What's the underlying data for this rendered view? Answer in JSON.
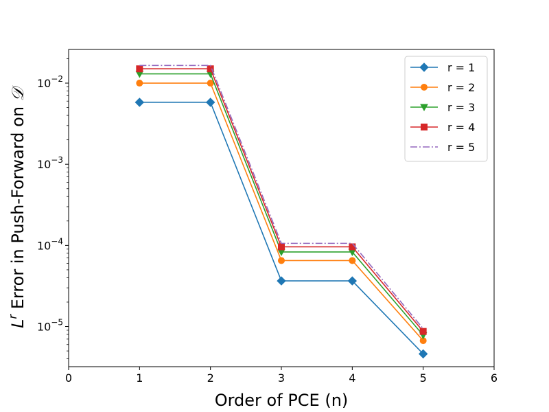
{
  "chart_data": {
    "type": "line",
    "xlabel": "Order of PCE (n)",
    "ylabel_prefix": "L",
    "ylabel_sup": "r",
    "ylabel_main": " Error in Push-Forward on ",
    "ylabel_symbol": "𝒟",
    "xlim": [
      0,
      6
    ],
    "ylim": [
      3.2e-06,
      0.026
    ],
    "yscale": "log",
    "grid": false,
    "legend_position": "top-right",
    "x_ticks": [
      0,
      1,
      2,
      3,
      4,
      5,
      6
    ],
    "x_tick_labels": [
      "0",
      "1",
      "2",
      "3",
      "4",
      "5",
      "6"
    ],
    "y_ticks": [
      1e-05,
      0.0001,
      0.001,
      0.01
    ],
    "y_tick_base": [
      "10",
      "10",
      "10",
      "10"
    ],
    "y_tick_exp": [
      "−5",
      "−4",
      "−3",
      "−2"
    ],
    "x": [
      1,
      2,
      3,
      4,
      5
    ],
    "series": [
      {
        "name": "r = 1",
        "color": "#1f77b4",
        "marker": "diamond",
        "linestyle": "solid",
        "values": [
          0.0058,
          0.0058,
          3.65e-05,
          3.65e-05,
          4.6e-06
        ]
      },
      {
        "name": "r = 2",
        "color": "#ff7f0e",
        "marker": "circle",
        "linestyle": "solid",
        "values": [
          0.01,
          0.01,
          6.5e-05,
          6.5e-05,
          6.7e-06
        ]
      },
      {
        "name": "r = 3",
        "color": "#2ca02c",
        "marker": "triangle-down",
        "linestyle": "solid",
        "values": [
          0.013,
          0.013,
          8.3e-05,
          8.3e-05,
          7.8e-06
        ]
      },
      {
        "name": "r = 4",
        "color": "#d62728",
        "marker": "square",
        "linestyle": "solid",
        "values": [
          0.015,
          0.015,
          9.6e-05,
          9.6e-05,
          8.7e-06
        ]
      },
      {
        "name": "r = 5",
        "color": "#9467bd",
        "marker": "none",
        "linestyle": "dashdot",
        "values": [
          0.0165,
          0.0165,
          0.000106,
          0.000106,
          9.4e-06
        ]
      }
    ]
  }
}
